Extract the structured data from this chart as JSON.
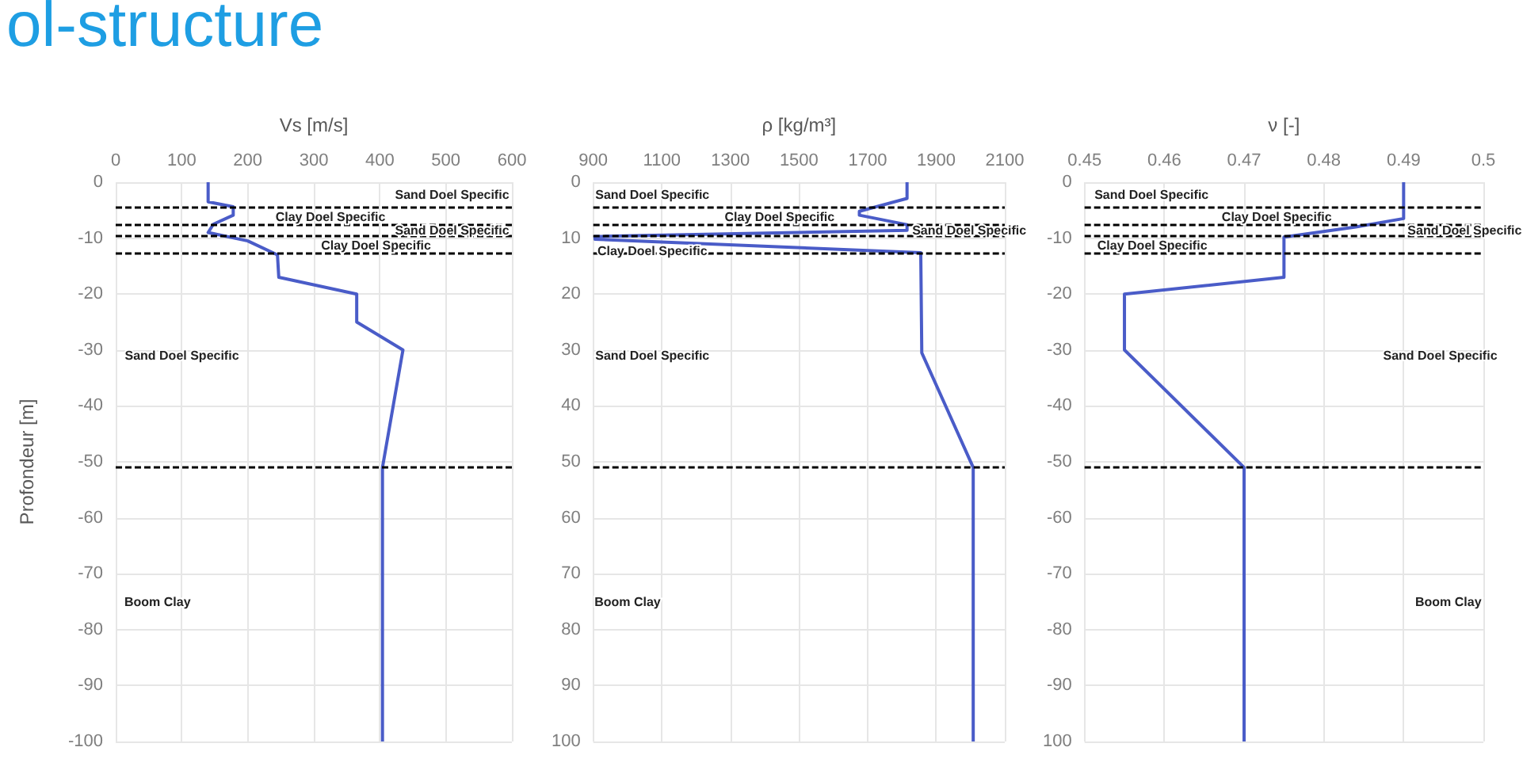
{
  "chart_data": [
    {
      "type": "line",
      "title": "ol-structure",
      "xlabel": "Vs [m/s]",
      "ylabel": "Profondeur [m]",
      "xlim": [
        0,
        600
      ],
      "xticks": [
        0,
        100,
        200,
        300,
        400,
        500,
        600
      ],
      "ylim": [
        -100,
        0
      ],
      "yticks": [
        0,
        -10,
        -20,
        -30,
        -40,
        -50,
        -60,
        -70,
        -80,
        -90,
        -100
      ],
      "grid": true,
      "marker": "none",
      "line_style": "solid",
      "series": [
        {
          "color": "#4a5cc8",
          "x": [
            140,
            140,
            178,
            178,
            148,
            140,
            200,
            245,
            247,
            365,
            365,
            435,
            404,
            404
          ],
          "values": [
            0,
            -3.5,
            -4.4,
            -5.9,
            -7.5,
            -9,
            -10.5,
            -13,
            -17,
            -20,
            -25,
            -30,
            -51,
            -100
          ]
        }
      ],
      "ref_lines": [
        {
          "axis": "y",
          "value": -4.4,
          "color": "#000000",
          "line_style": "dashed"
        },
        {
          "axis": "y",
          "value": -7.5,
          "color": "#000000",
          "line_style": "dashed"
        },
        {
          "axis": "y",
          "value": -9.6,
          "color": "#000000",
          "line_style": "dashed"
        },
        {
          "axis": "y",
          "value": -12.6,
          "color": "#000000",
          "line_style": "dashed"
        },
        {
          "axis": "y",
          "value": -51,
          "color": "#000000",
          "line_style": "dashed"
        }
      ],
      "annotations": [
        "Sand Doel Specific",
        {
          "text": "Clay Doel Specific",
          "x": 242,
          "y": -6.2
        },
        {
          "text": "Sand Doel Specific",
          "x": 423,
          "y": -8.6
        },
        {
          "text": "Clay Doel Specific",
          "x": 311,
          "y": -11.3
        },
        "Sand Doel Specific",
        "Boom Clay"
      ]
    },
    {
      "type": "line",
      "xlabel": "ρ [kg/m³]",
      "xlim": [
        900,
        2100
      ],
      "xticks": [
        900,
        1100,
        1300,
        1500,
        1700,
        1900,
        2100
      ],
      "ylim": [
        -100,
        0
      ],
      "yticks": [
        {
          "value": 0,
          "label": "0"
        },
        {
          "value": -10,
          "label": "10"
        },
        {
          "value": -20,
          "label": "20"
        },
        {
          "value": -30,
          "label": "30"
        },
        {
          "value": -40,
          "label": "40"
        },
        {
          "value": -50,
          "label": "50"
        },
        {
          "value": -60,
          "label": "60"
        },
        {
          "value": -70,
          "label": "70"
        },
        {
          "value": -80,
          "label": "80"
        },
        {
          "value": -90,
          "label": "90"
        },
        {
          "value": -100,
          "label": "100"
        }
      ],
      "grid": true,
      "marker": "none",
      "line_style": "solid",
      "series": [
        {
          "color": "#4a5cc8",
          "x": [
            1815,
            1815,
            1676,
            1676,
            1815,
            1815,
            905,
            905,
            1855,
            1858,
            2008,
            2008
          ],
          "values": [
            0,
            -2.9,
            -5.2,
            -5.9,
            -7.6,
            -8.6,
            -9.7,
            -10.2,
            -12.6,
            -30.5,
            -51,
            -100
          ]
        }
      ],
      "ref_lines": [
        {
          "axis": "y",
          "value": -4.4,
          "color": "#000000",
          "line_style": "dashed"
        },
        {
          "axis": "y",
          "value": -7.5,
          "color": "#000000",
          "line_style": "dashed"
        },
        {
          "axis": "y",
          "value": -9.6,
          "color": "#000000",
          "line_style": "dashed"
        },
        {
          "axis": "y",
          "value": -12.6,
          "color": "#000000",
          "line_style": "dashed"
        },
        {
          "axis": "y",
          "value": -51,
          "color": "#000000",
          "line_style": "dashed"
        }
      ],
      "annotations": [
        "Sand Doel Specific",
        {
          "text": "Clay Doel Specific",
          "x": 1283,
          "y": -6.2
        },
        {
          "text": "Sand Doel Specific",
          "x": 1830,
          "y": -8.6
        },
        {
          "text": "Clay Doel Specific",
          "x": 912,
          "y": -12.3
        },
        "Sand Doel Specific",
        "Boom Clay"
      ]
    },
    {
      "type": "line",
      "xlabel": "ν [-]",
      "xlim": [
        0.45,
        0.5
      ],
      "xticks": [
        0.45,
        0.46,
        0.47,
        0.48,
        0.49,
        0.5
      ],
      "ylim": [
        -100,
        0
      ],
      "yticks": [
        0,
        -10,
        -20,
        -30,
        -40,
        -50,
        -60,
        -70,
        -80,
        -90,
        {
          "value": -100,
          "label": "100"
        }
      ],
      "grid": true,
      "marker": "none",
      "line_style": "solid",
      "series": [
        {
          "color": "#4a5cc8",
          "x": [
            0.49,
            0.49,
            0.484,
            0.475,
            0.475,
            0.455,
            0.455,
            0.47,
            0.47
          ],
          "values": [
            0,
            -6.5,
            -8,
            -9.8,
            -17,
            -20,
            -30,
            -51,
            -100
          ]
        }
      ],
      "ref_lines": [
        {
          "axis": "y",
          "value": -4.4,
          "color": "#000000",
          "line_style": "dashed"
        },
        {
          "axis": "y",
          "value": -7.5,
          "color": "#000000",
          "line_style": "dashed"
        },
        {
          "axis": "y",
          "value": -9.6,
          "color": "#000000",
          "line_style": "dashed"
        },
        {
          "axis": "y",
          "value": -12.6,
          "color": "#000000",
          "line_style": "dashed"
        },
        {
          "axis": "y",
          "value": -51,
          "color": "#000000",
          "line_style": "dashed"
        }
      ],
      "annotations": [
        "Sand Doel Specific",
        {
          "text": "Clay Doel Specific",
          "x": 0.4672,
          "y": -6.2
        },
        {
          "text": "Sand Doel Specific",
          "x": 0.4905,
          "y": -8.6
        },
        {
          "text": "Clay Doel Specific",
          "x": 0.4516,
          "y": -11.3
        },
        "Sand Doel Specific",
        "Boom Clay"
      ]
    }
  ]
}
